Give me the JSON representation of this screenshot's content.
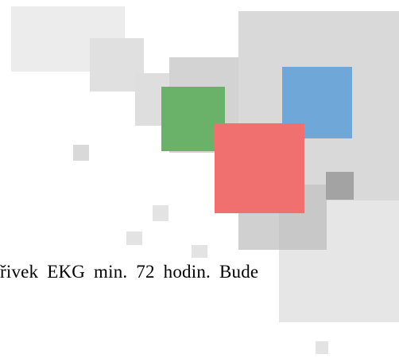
{
  "document": {
    "text_line": "řivek EKG min. 72 hodin. Bude"
  },
  "decoration": {
    "colors": {
      "blue": "#6fa7d8",
      "green": "#6ab16a",
      "red": "#f07070",
      "dark_gray": "#a3a3a3",
      "light_gray": "#d9d9d9"
    }
  }
}
